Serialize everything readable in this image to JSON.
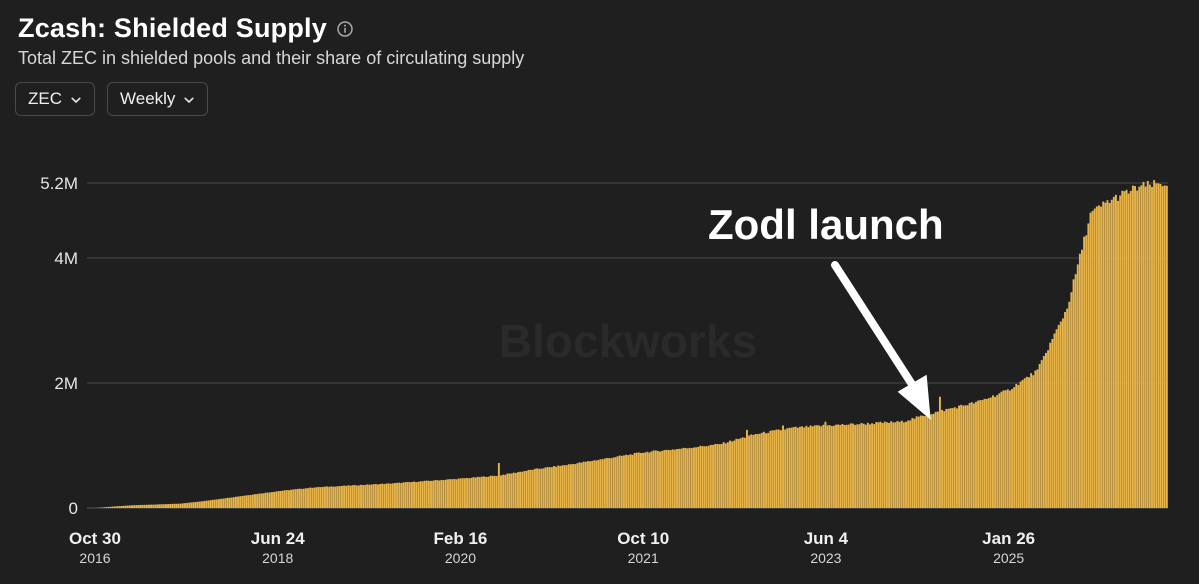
{
  "header": {
    "title": "Zcash: Shielded Supply",
    "subtitle": "Total ZEC in shielded pools and their share of circulating supply",
    "info_icon": "info-icon"
  },
  "controls": {
    "asset_dropdown": {
      "selected": "ZEC",
      "icon": "chevron-down-icon"
    },
    "interval_dropdown": {
      "selected": "Weekly",
      "icon": "chevron-down-icon"
    }
  },
  "chart_data": {
    "type": "bar",
    "y_axis": {
      "min": 0,
      "max": 5200000,
      "ticks": [
        {
          "label": "0",
          "value": 0
        },
        {
          "label": "2M",
          "value": 2000000
        },
        {
          "label": "4M",
          "value": 4000000
        },
        {
          "label": "5.2M",
          "value": 5200000
        }
      ],
      "gridlines": true
    },
    "x_axis": {
      "start_date": "2016-10-30",
      "end_date": "2026-07-05",
      "ticks": [
        {
          "label": "Oct 30",
          "year": "2016",
          "date": "2016-10-30"
        },
        {
          "label": "Jun 24",
          "year": "2018",
          "date": "2018-06-24"
        },
        {
          "label": "Feb 16",
          "year": "2020",
          "date": "2020-02-16"
        },
        {
          "label": "Oct 10",
          "year": "2021",
          "date": "2021-10-10"
        },
        {
          "label": "Jun 4",
          "year": "2023",
          "date": "2023-06-04"
        },
        {
          "label": "Jan 26",
          "year": "2025",
          "date": "2025-01-26"
        }
      ]
    },
    "series": [
      {
        "color": "#e8b54a",
        "anchors": [
          [
            "2016-10-30",
            0
          ],
          [
            "2016-12-04",
            15000
          ],
          [
            "2017-01-15",
            30000
          ],
          [
            "2017-03-05",
            45000
          ],
          [
            "2017-05-07",
            55000
          ],
          [
            "2017-08-06",
            70000
          ],
          [
            "2017-11-05",
            120000
          ],
          [
            "2018-02-04",
            180000
          ],
          [
            "2018-06-24",
            270000
          ],
          [
            "2018-10-21",
            330000
          ],
          [
            "2019-02-17",
            360000
          ],
          [
            "2019-06-23",
            390000
          ],
          [
            "2019-10-20",
            430000
          ],
          [
            "2020-02-16",
            470000
          ],
          [
            "2020-06-21",
            520000
          ],
          [
            "2020-10-18",
            620000
          ],
          [
            "2021-02-14",
            700000
          ],
          [
            "2021-06-20",
            800000
          ],
          [
            "2021-10-10",
            890000
          ],
          [
            "2022-02-13",
            950000
          ],
          [
            "2022-06-19",
            1020000
          ],
          [
            "2022-10-16",
            1180000
          ],
          [
            "2023-02-12",
            1280000
          ],
          [
            "2023-06-04",
            1320000
          ],
          [
            "2023-10-15",
            1350000
          ],
          [
            "2024-02-11",
            1380000
          ],
          [
            "2024-06-16",
            1550000
          ],
          [
            "2024-10-20",
            1700000
          ],
          [
            "2025-01-26",
            1880000
          ],
          [
            "2025-05-04",
            2200000
          ],
          [
            "2025-08-10",
            3200000
          ],
          [
            "2025-10-26",
            4700000
          ],
          [
            "2025-12-21",
            4900000
          ],
          [
            "2026-02-01",
            5000000
          ],
          [
            "2026-04-05",
            5140000
          ],
          [
            "2026-07-05",
            5200000
          ]
        ],
        "spikes": [
          {
            "date": "2020-06-21",
            "value": 720000
          },
          {
            "date": "2022-02-27",
            "value": 960000
          },
          {
            "date": "2022-09-18",
            "value": 1250000
          },
          {
            "date": "2023-01-15",
            "value": 1320000
          },
          {
            "date": "2023-06-04",
            "value": 1380000
          },
          {
            "date": "2024-06-16",
            "value": 1780000
          }
        ]
      }
    ],
    "annotations": [
      {
        "text": "Zodl launch",
        "arrow_to_date": "2024-06-16",
        "arrow_to_value": 1380000
      }
    ],
    "watermark": "Blockworks"
  }
}
